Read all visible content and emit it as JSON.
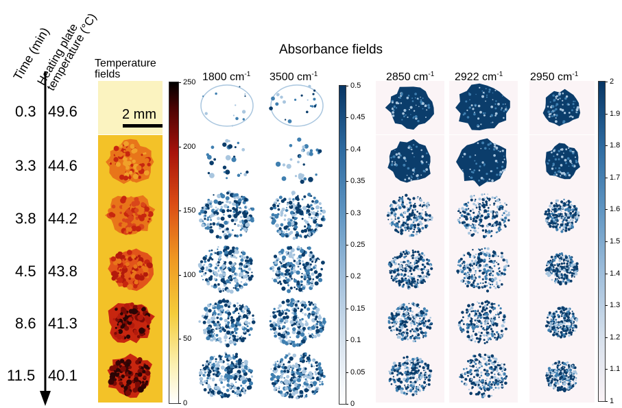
{
  "labels": {
    "time_axis": "Time (min)",
    "plate_temp": "Heating plate\ntemperature (°C)",
    "temperature_fields": "Temperature\nfields",
    "absorbance_fields": "Absorbance fields",
    "scale_bar": "2 mm"
  },
  "rows": [
    {
      "time": "0.3",
      "temp": "49.6"
    },
    {
      "time": "3.3",
      "temp": "44.6"
    },
    {
      "time": "3.8",
      "temp": "44.2"
    },
    {
      "time": "4.5",
      "temp": "43.8"
    },
    {
      "time": "8.6",
      "temp": "41.3"
    },
    {
      "time": "11.5",
      "temp": "40.1"
    }
  ],
  "wavenumbers": {
    "w1800": "1800 cm",
    "w3500": "3500 cm",
    "w2850": "2850 cm",
    "w2922": "2922 cm",
    "w2950": "2950 cm",
    "exp": "-1"
  },
  "colorbars": {
    "temperature": {
      "ticks": [
        "250",
        "200",
        "150",
        "100",
        "50",
        "0"
      ]
    },
    "absorbance1": {
      "ticks": [
        "0.5",
        "0.45",
        "0.4",
        "0.35",
        "0.3",
        "0.25",
        "0.2",
        "0.15",
        "0.1",
        "0.05",
        "0"
      ]
    },
    "absorbance2": {
      "ticks": [
        "2",
        "1.9",
        "1.8",
        "1.7",
        "1.6",
        "1.5",
        "1.4",
        "1.3",
        "1.2",
        "1.1",
        "1"
      ]
    }
  },
  "colors": {
    "heat_light": "#fbf3c0",
    "heat_yellow": "#f3c228",
    "heat_orange": "#e8751a",
    "heat_red": "#c7260f",
    "heat_dark": "#2a0505",
    "blue_dark": "#0b3d6b",
    "blue_mid": "#3f7fb0",
    "blue_light": "#a9c6df",
    "panel_bg": "#fbf4f6"
  }
}
